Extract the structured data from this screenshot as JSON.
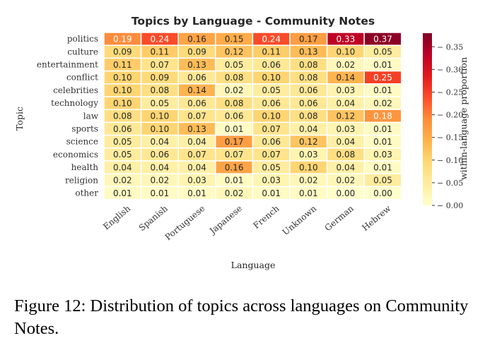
{
  "caption": "Figure 12: Distribution of topics across languages on Community Notes.",
  "chart_data": {
    "type": "heatmap",
    "title": "Topics by Language - Community Notes",
    "xlabel": "Language",
    "ylabel": "Topic",
    "colorbar_label": "within-language proportion",
    "colorbar_ticks": [
      "0.00",
      "0.05",
      "0.10",
      "0.15",
      "0.20",
      "0.25",
      "0.30",
      "0.35"
    ],
    "colorbar_range": [
      0,
      0.38
    ],
    "colormap": [
      "#ffffcc",
      "#ffeda0",
      "#fed976",
      "#feb24c",
      "#fd8d3c",
      "#fc4e2a",
      "#e31a1c",
      "#bd0026",
      "#800026"
    ],
    "x": [
      "English",
      "Spanish",
      "Portuguese",
      "Japanese",
      "French",
      "Unknown",
      "German",
      "Hebrew"
    ],
    "y": [
      "politics",
      "culture",
      "entertainment",
      "conflict",
      "celebrities",
      "technology",
      "law",
      "sports",
      "science",
      "economics",
      "health",
      "religion",
      "other"
    ],
    "values": [
      [
        0.19,
        0.24,
        0.16,
        0.15,
        0.24,
        0.17,
        0.33,
        0.37
      ],
      [
        0.09,
        0.11,
        0.09,
        0.12,
        0.11,
        0.13,
        0.1,
        0.05
      ],
      [
        0.11,
        0.07,
        0.13,
        0.05,
        0.06,
        0.08,
        0.02,
        0.01
      ],
      [
        0.1,
        0.09,
        0.06,
        0.08,
        0.1,
        0.08,
        0.14,
        0.25
      ],
      [
        0.1,
        0.08,
        0.14,
        0.02,
        0.05,
        0.06,
        0.03,
        0.01
      ],
      [
        0.1,
        0.05,
        0.06,
        0.08,
        0.06,
        0.06,
        0.04,
        0.02
      ],
      [
        0.08,
        0.1,
        0.07,
        0.06,
        0.1,
        0.08,
        0.12,
        0.18
      ],
      [
        0.06,
        0.1,
        0.13,
        0.01,
        0.07,
        0.04,
        0.03,
        0.01
      ],
      [
        0.05,
        0.04,
        0.04,
        0.17,
        0.06,
        0.12,
        0.04,
        0.01
      ],
      [
        0.05,
        0.06,
        0.07,
        0.07,
        0.07,
        0.03,
        0.08,
        0.03
      ],
      [
        0.04,
        0.04,
        0.04,
        0.16,
        0.05,
        0.1,
        0.04,
        0.01
      ],
      [
        0.02,
        0.02,
        0.03,
        0.01,
        0.03,
        0.02,
        0.02,
        0.05
      ],
      [
        0.01,
        0.01,
        0.01,
        0.02,
        0.01,
        0.01,
        0.0,
        0.0
      ]
    ]
  }
}
